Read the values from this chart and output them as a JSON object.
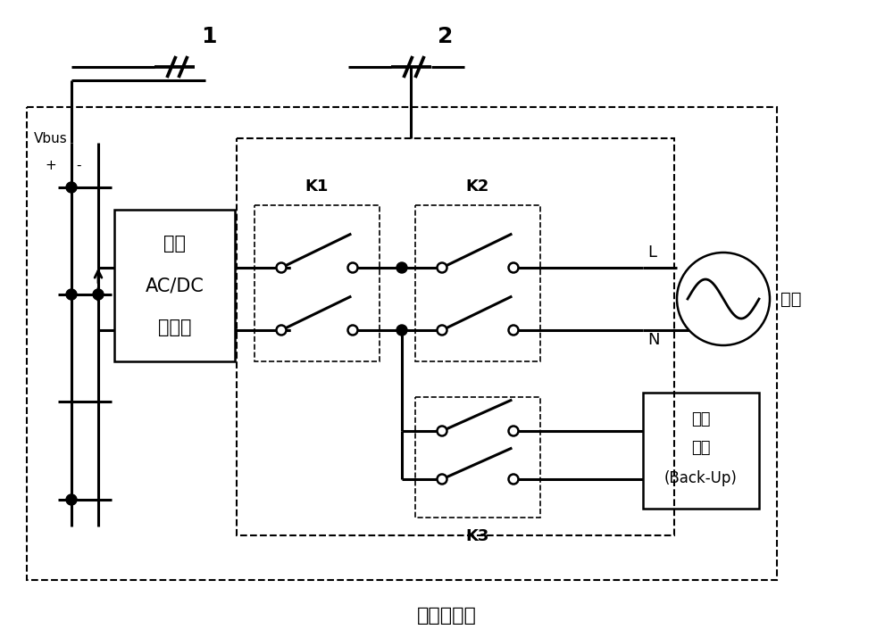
{
  "title": "储能逆变器",
  "label_1": "1",
  "label_2": "2",
  "vbus_label": "Vbus",
  "vbus_plus": "+",
  "vbus_minus": "-",
  "converter_line1": "双向",
  "converter_line2": "AC/DC",
  "converter_line3": "变换器",
  "k1_label": "K1",
  "k2_label": "K2",
  "k3_label": "K3",
  "L_label": "L",
  "N_label": "N",
  "grid_label": "电网",
  "backup_line1": "后备",
  "backup_line2": "负载",
  "backup_line3": "(Back-Up)",
  "bg_color": "#ffffff",
  "line_color": "#000000",
  "figsize": [
    10,
    7.15
  ],
  "dpi": 100
}
